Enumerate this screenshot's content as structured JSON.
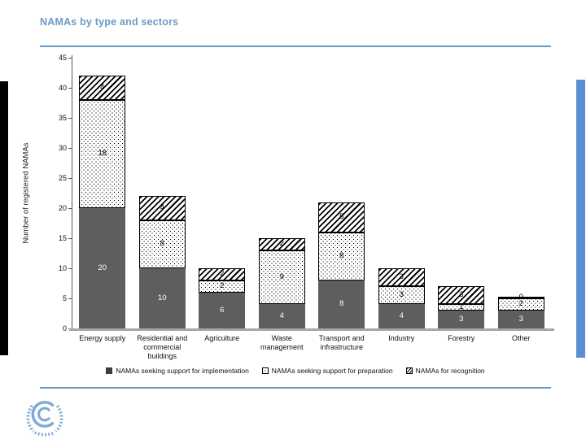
{
  "page": {
    "title": "NAMAs by type and sectors"
  },
  "chart_data": {
    "type": "bar",
    "stacked": true,
    "title": "NAMAs by type and sectors",
    "xlabel": "",
    "ylabel": "Number of registered NAMAs",
    "ylim": [
      0,
      45
    ],
    "ytick_step": 5,
    "grid": false,
    "legend_position": "bottom",
    "categories": [
      "Energy supply",
      "Residential and commercial buildings",
      "Agriculture",
      "Waste management",
      "Transport and infrastructure",
      "Industry",
      "Forestry",
      "Other"
    ],
    "series": [
      {
        "name": "NAMAs seeking support for implementation",
        "style": "solid",
        "color": "#5e5e5e",
        "values": [
          20,
          10,
          6,
          4,
          8,
          4,
          3,
          3
        ]
      },
      {
        "name": "NAMAs seeking support for preparation",
        "style": "dotted",
        "color": "#ffffff",
        "values": [
          18,
          8,
          2,
          9,
          8,
          3,
          1,
          2
        ]
      },
      {
        "name": "NAMAs for recognition",
        "style": "hatched",
        "color": "#000000",
        "values": [
          4,
          4,
          2,
          2,
          5,
          3,
          3,
          0
        ]
      }
    ],
    "totals": [
      42,
      22,
      10,
      15,
      21,
      10,
      7,
      5
    ]
  },
  "colors": {
    "accent_blue": "#6b99c7",
    "right_edge_bar": "#5b8fd4",
    "left_edge_bar": "#000000",
    "axis_gray": "#a6a6a6",
    "logo_blue": "#7fa9d4"
  }
}
